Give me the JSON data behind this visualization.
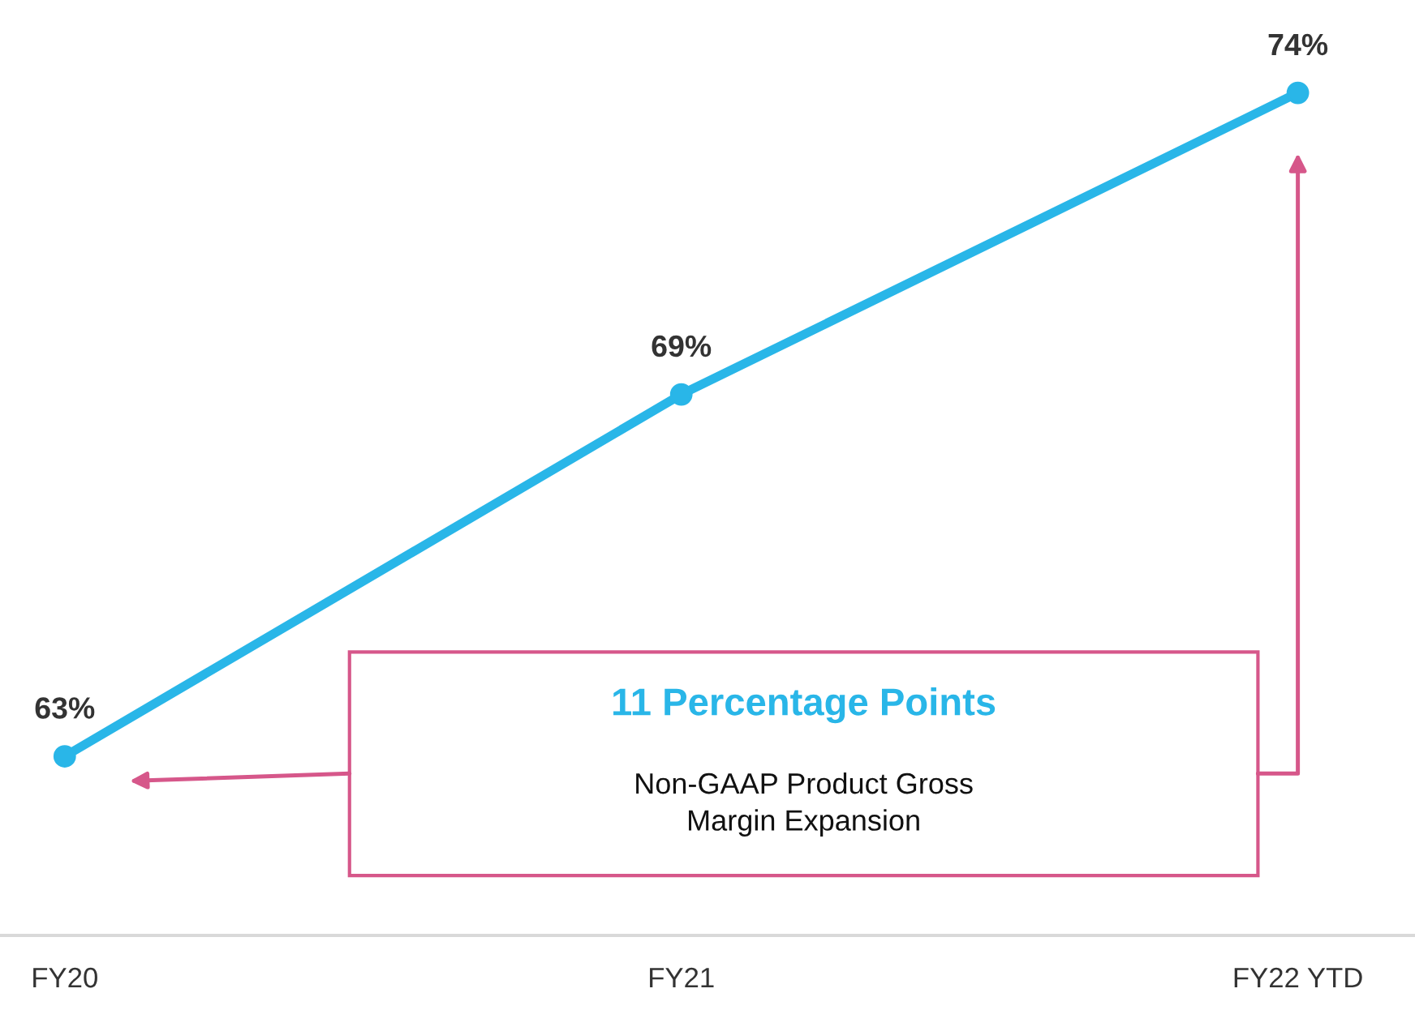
{
  "chart_data": {
    "type": "line",
    "categories": [
      "FY20",
      "FY21",
      "FY22 YTD"
    ],
    "series": [
      {
        "color": "#29b6e8",
        "values": [
          63,
          69,
          74
        ],
        "value_labels": [
          "63%",
          "69%",
          "74%"
        ]
      }
    ],
    "marker": "circle",
    "line_style": "solid",
    "grid": false,
    "annotations": [
      "11 Percentage Points",
      "Non-GAAP Product Gross\nMargin Expansion"
    ]
  }
}
